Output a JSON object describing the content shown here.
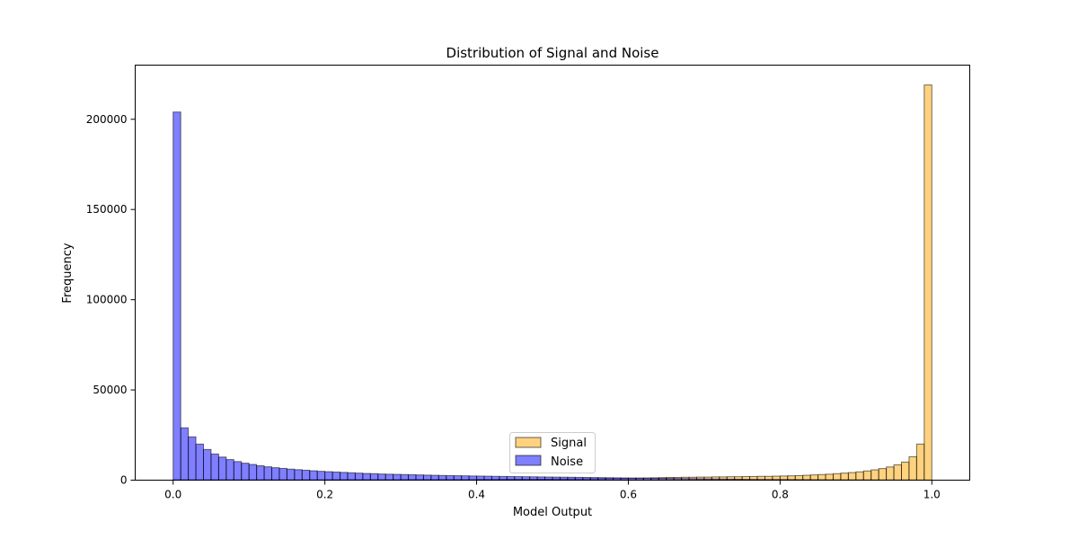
{
  "chart_data": {
    "type": "bar",
    "title": "Distribution of Signal and Noise",
    "xlabel": "Model Output",
    "ylabel": "Frequency",
    "xlim": [
      -0.05,
      1.05
    ],
    "ylim": [
      0,
      230000
    ],
    "xticks": [
      0.0,
      0.2,
      0.4,
      0.6,
      0.8,
      1.0
    ],
    "xtick_labels": [
      "0.0",
      "0.2",
      "0.4",
      "0.6",
      "0.8",
      "1.0"
    ],
    "yticks": [
      0,
      50000,
      100000,
      150000,
      200000
    ],
    "ytick_labels": [
      "0",
      "50000",
      "100000",
      "150000",
      "200000"
    ],
    "bins": 100,
    "bin_range": [
      0,
      1
    ],
    "legend_position": "lower center",
    "grid": false,
    "series": [
      {
        "name": "Signal",
        "color": "#FFA500",
        "edgecolor": "#000000",
        "alpha": 0.5,
        "values": [
          200,
          200,
          200,
          200,
          200,
          200,
          200,
          200,
          200,
          200,
          200,
          200,
          200,
          200,
          200,
          200,
          200,
          200,
          200,
          200,
          250,
          250,
          250,
          250,
          250,
          250,
          250,
          250,
          250,
          250,
          300,
          300,
          300,
          300,
          300,
          300,
          300,
          300,
          300,
          300,
          400,
          400,
          400,
          400,
          450,
          450,
          450,
          450,
          500,
          500,
          600,
          600,
          650,
          650,
          700,
          750,
          800,
          850,
          900,
          950,
          1000,
          1100,
          1200,
          1300,
          1400,
          1500,
          1500,
          1600,
          1600,
          1700,
          1700,
          1800,
          1800,
          1900,
          1900,
          2000,
          2000,
          2100,
          2100,
          2200,
          2300,
          2400,
          2500,
          2700,
          2900,
          3100,
          3300,
          3600,
          3900,
          4200,
          4600,
          5100,
          5700,
          6400,
          7300,
          8500,
          10000,
          13000,
          20000,
          219000
        ]
      },
      {
        "name": "Noise",
        "color": "#0000FF",
        "edgecolor": "#000000",
        "alpha": 0.5,
        "values": [
          204000,
          29000,
          24000,
          20000,
          17000,
          14500,
          12800,
          11400,
          10300,
          9400,
          8700,
          8000,
          7400,
          6900,
          6500,
          6100,
          5800,
          5500,
          5200,
          4900,
          4700,
          4500,
          4300,
          4100,
          3900,
          3700,
          3600,
          3400,
          3300,
          3200,
          3100,
          3000,
          2900,
          2800,
          2700,
          2600,
          2500,
          2450,
          2400,
          2300,
          2250,
          2200,
          2100,
          2050,
          2000,
          1950,
          1900,
          1850,
          1800,
          1750,
          1700,
          1650,
          1600,
          1550,
          1500,
          1450,
          1400,
          1350,
          1300,
          1250,
          1200,
          1150,
          1100,
          1050,
          1000,
          950,
          900,
          850,
          800,
          750,
          700,
          650,
          600,
          550,
          500,
          450,
          420,
          400,
          380,
          360,
          340,
          320,
          300,
          280,
          260,
          240,
          220,
          200,
          180,
          170,
          160,
          150,
          140,
          130,
          120,
          110,
          100,
          90,
          80,
          70
        ]
      }
    ]
  }
}
